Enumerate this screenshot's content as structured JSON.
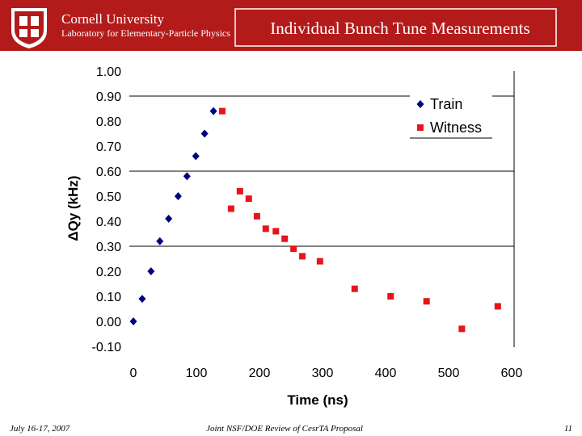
{
  "header": {
    "university": "Cornell University",
    "lab": "Laboratory for Elementary-Particle Physics",
    "title": "Individual Bunch Tune Measurements"
  },
  "chart_data": {
    "type": "scatter",
    "y_label": "ΔQy (kHz)",
    "x_label": "Time (ns)",
    "xlim": [
      0,
      600
    ],
    "xticks": [
      0,
      100,
      200,
      300,
      400,
      500,
      600
    ],
    "ylim": [
      -0.1,
      1.0
    ],
    "yticks": [
      {
        "value": -0.1,
        "label": "-0.10"
      },
      {
        "value": 0,
        "label": "0.00"
      },
      {
        "value": 0.1,
        "label": "0.10"
      },
      {
        "value": 0.2,
        "label": "0.20"
      },
      {
        "value": 0.3,
        "label": "0.30"
      },
      {
        "value": 0.4,
        "label": "0.40"
      },
      {
        "value": 0.5,
        "label": "0.50"
      },
      {
        "value": 0.6,
        "label": "0.60"
      },
      {
        "value": 0.7,
        "label": "0.70"
      },
      {
        "value": 0.8,
        "label": "0.80"
      },
      {
        "value": 0.9,
        "label": "0.90"
      },
      {
        "value": 1.0,
        "label": "1.00"
      }
    ],
    "grid_lines": [
      0.3,
      0.6,
      0.9
    ],
    "legend": "upper right",
    "series": [
      {
        "name": "Train",
        "color": "#000080",
        "marker": "diamond",
        "x": [
          0,
          14,
          28,
          42,
          56,
          71,
          85,
          99,
          113,
          127
        ],
        "values": [
          0.0,
          0.09,
          0.2,
          0.32,
          0.41,
          0.5,
          0.58,
          0.66,
          0.75,
          0.84
        ]
      },
      {
        "name": "Witness",
        "color": "#e8141c",
        "marker": "square",
        "x": [
          141,
          155,
          169,
          183,
          196,
          210,
          226,
          240,
          254,
          268,
          296,
          351,
          408,
          465,
          521,
          578
        ],
        "values": [
          0.84,
          0.45,
          0.52,
          0.49,
          0.42,
          0.37,
          0.36,
          0.33,
          0.29,
          0.26,
          0.24,
          0.13,
          0.1,
          0.08,
          -0.03,
          0.06
        ],
        "errors": [
          0.01,
          0.01,
          0.01,
          0.01,
          0.01,
          0.01,
          0.01,
          0.01,
          0.01,
          0.01,
          0.01,
          0.01,
          0.01,
          0.01,
          0.01,
          0.01
        ]
      }
    ]
  },
  "footer": {
    "date": "July 16-17, 2007",
    "event": "Joint NSF/DOE Review of CesrTA Proposal",
    "page": "11"
  }
}
